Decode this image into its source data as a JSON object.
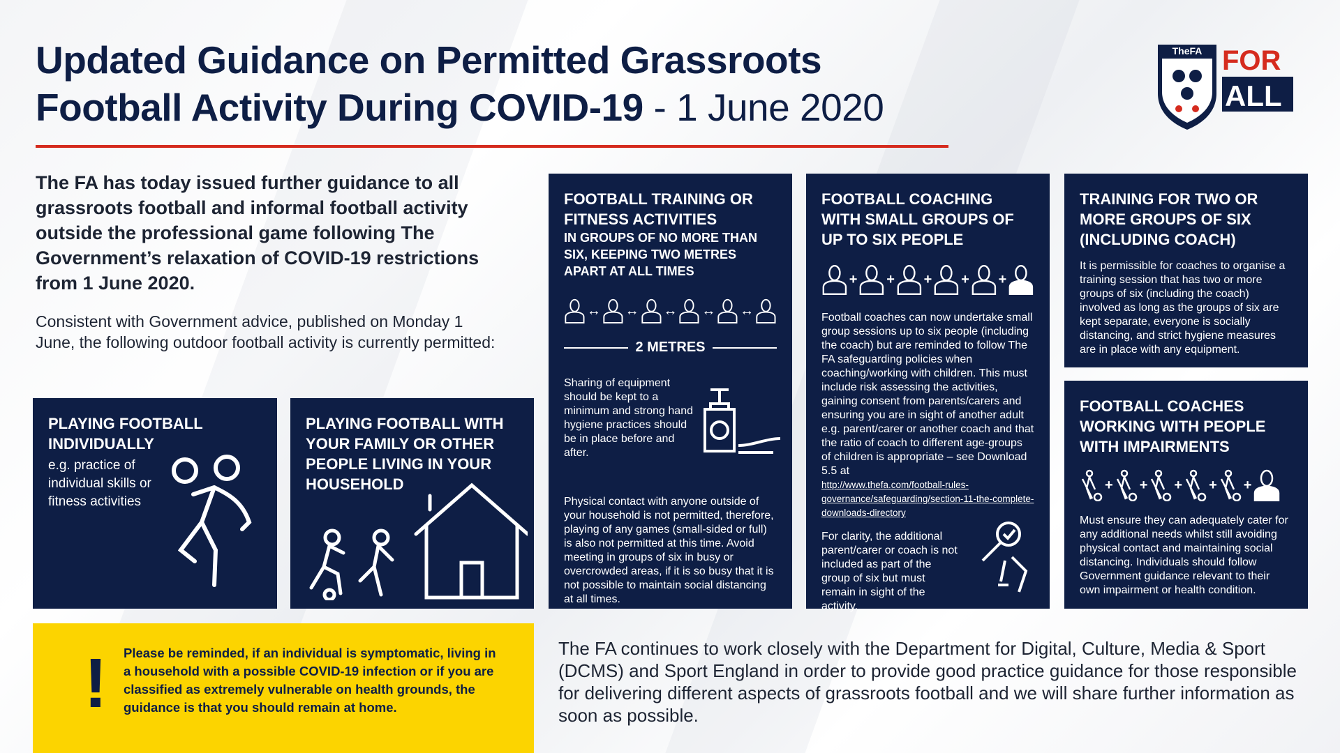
{
  "header": {
    "title_line1": "Updated Guidance on Permitted Grassroots",
    "title_line2": "Football Activity During COVID-19",
    "title_date": " - 1 June 2020",
    "logo_text_fa": "TheFA",
    "logo_text_for": "FOR",
    "logo_text_all": "ALL"
  },
  "colors": {
    "navy": "#0e1e45",
    "red": "#d52b1e",
    "yellow": "#fcd400"
  },
  "intro": {
    "lead": "The FA has today issued further guidance to all grassroots football and informal football activity outside the professional game following The Government’s relaxation of COVID-19 restrictions from 1 June 2020.",
    "body": "Consistent with Government advice, published on Monday 1 June, the following outdoor football activity is currently permitted:"
  },
  "cards": {
    "individual": {
      "title": "PLAYING FOOTBALL INDIVIDUALLY",
      "text": "e.g. practice of individual skills or fitness activities",
      "icon": "kicking-player-icon"
    },
    "household": {
      "title": "PLAYING FOOTBALL WITH YOUR FAMILY OR OTHER PEOPLE LIVING IN YOUR HOUSEHOLD",
      "icon": "house-icon"
    },
    "training": {
      "title": "FOOTBALL TRAINING OR FITNESS ACTIVITIES",
      "subtitle": "IN GROUPS OF NO MORE THAN SIX, KEEPING TWO METRES APART AT ALL TIMES",
      "distance_label": "2 METRES",
      "equipment_text": "Sharing of equipment should be kept to a minimum and strong hand hygiene practices should be in place before and after.",
      "contact_text": "Physical contact with anyone outside of your household is not permitted, therefore, playing of any games (small-sided or full) is also not permitted at this time. Avoid meeting in groups of six in busy or overcrowded areas, if it is so busy that it is not possible to maintain social distancing at all times."
    },
    "coaching": {
      "title": "FOOTBALL COACHING WITH SMALL GROUPS OF UP TO SIX PEOPLE",
      "text": "Football coaches can now undertake small group sessions up to six people (including the coach) but are reminded to follow The FA safeguarding policies when coaching/working with children. This must include risk assessing the activities, gaining consent from parents/carers and ensuring you are in sight of another adult e.g. parent/carer or another coach and that the ratio of coach to different age-groups of children is appropriate – see Download 5.5 at",
      "link": "http://www.thefa.com/football-rules-governance/safeguarding/section-11-the-complete-downloads-directory",
      "clarity_text": "For clarity, the additional parent/carer or coach is not included as part of the group of six but must remain in sight of the activity."
    },
    "two_groups": {
      "title": "TRAINING FOR TWO OR MORE GROUPS OF SIX (INCLUDING COACH)",
      "text": "It is permissible for coaches to organise a training session that has two or more groups of six (including the coach) involved as long as the groups of six are kept separate, everyone is socially distancing, and strict hygiene measures are in place with any equipment."
    },
    "impairments": {
      "title": "FOOTBALL COACHES WORKING WITH PEOPLE WITH IMPAIRMENTS",
      "text": "Must ensure they can adequately cater for any additional needs whilst still avoiding physical contact and maintaining social distancing. Individuals should follow Government guidance relevant to their own impairment or health condition."
    }
  },
  "warning": {
    "symbol": "!",
    "text": "Please be reminded, if an individual is symptomatic, living in a household with a possible COVID-19 infection or if you are classified as extremely vulnerable on health grounds, the guidance is that you should remain at home."
  },
  "footer": {
    "text": "The FA continues to work closely with the Department for Digital, Culture, Media & Sport (DCMS) and Sport England in order to provide good practice guidance for those responsible for delivering different aspects of grassroots football and we will share further information as soon as possible."
  }
}
